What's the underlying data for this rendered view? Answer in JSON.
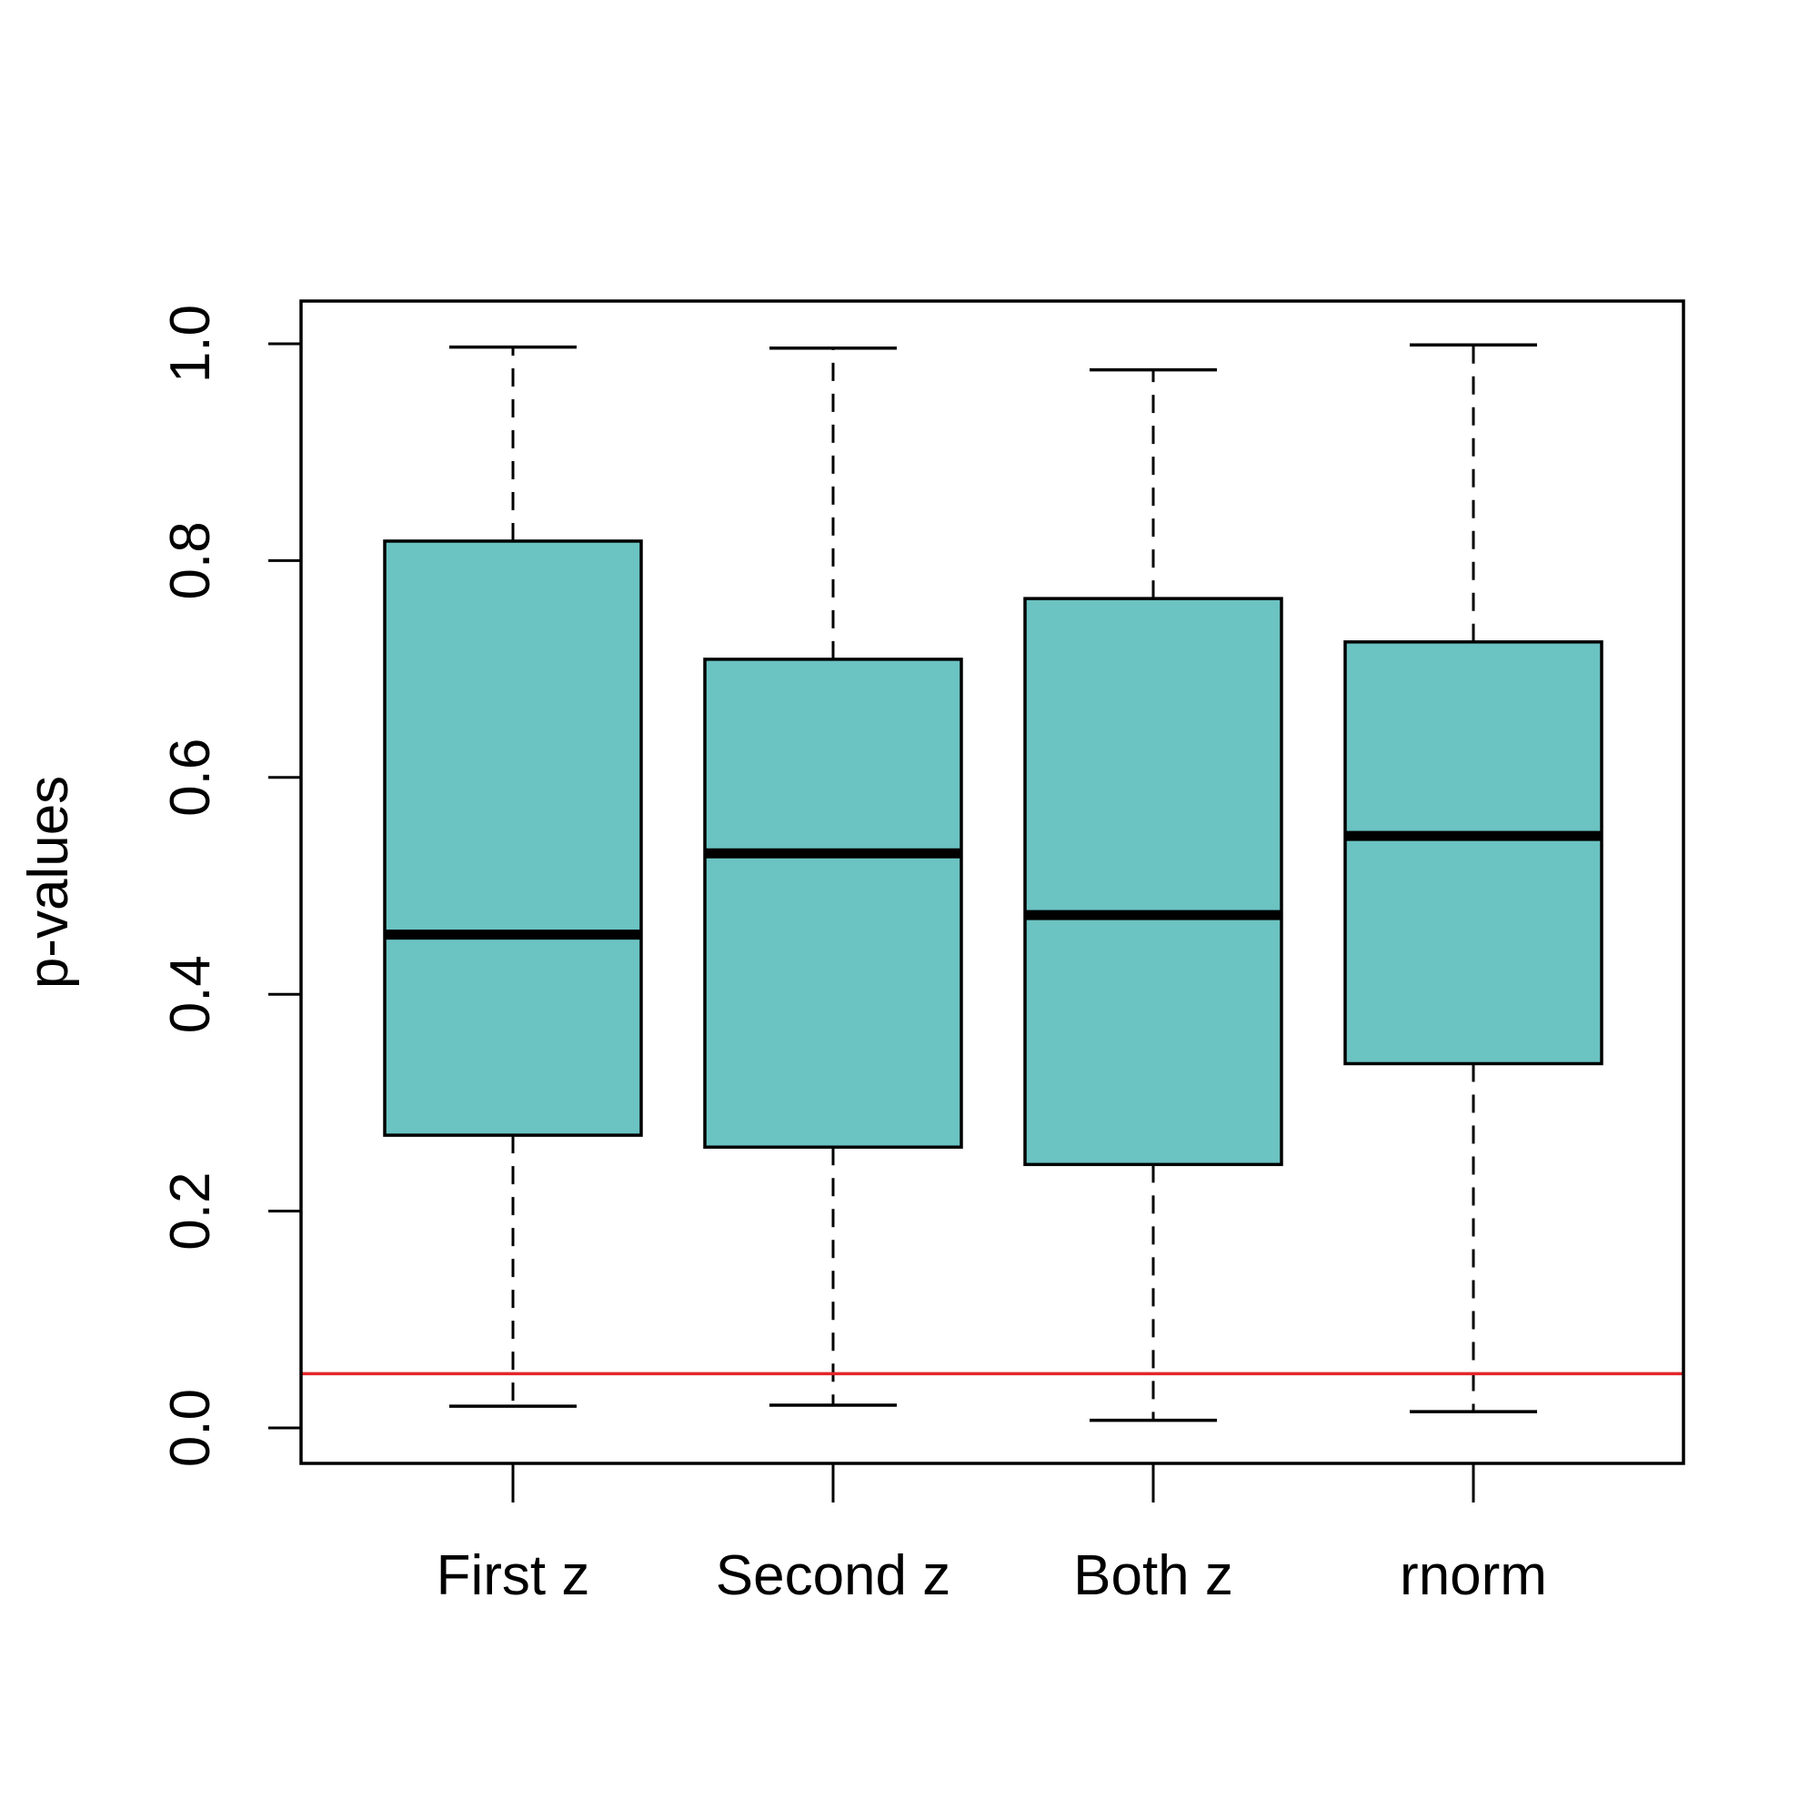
{
  "chart_data": {
    "type": "boxplot",
    "title": "",
    "xlabel": "",
    "ylabel": "p-values",
    "ylim": [
      -0.032,
      1.04
    ],
    "y_ticks": [
      {
        "value": 0.0,
        "label": "0.0"
      },
      {
        "value": 0.2,
        "label": "0.2"
      },
      {
        "value": 0.4,
        "label": "0.4"
      },
      {
        "value": 0.6,
        "label": "0.6"
      },
      {
        "value": 0.8,
        "label": "0.8"
      },
      {
        "value": 1.0,
        "label": "1.0"
      }
    ],
    "categories": [
      "First z",
      "Second z",
      "Both z",
      "rnorm"
    ],
    "boxes": [
      {
        "category": "First z",
        "min": 0.02,
        "q1": 0.27,
        "median": 0.455,
        "q3": 0.818,
        "max": 0.997
      },
      {
        "category": "Second z",
        "min": 0.021,
        "q1": 0.259,
        "median": 0.53,
        "q3": 0.709,
        "max": 0.996
      },
      {
        "category": "Both z",
        "min": 0.007,
        "q1": 0.243,
        "median": 0.473,
        "q3": 0.765,
        "max": 0.976
      },
      {
        "category": "rnorm",
        "min": 0.015,
        "q1": 0.336,
        "median": 0.546,
        "q3": 0.725,
        "max": 0.999
      }
    ],
    "reference_line": {
      "y": 0.05,
      "color": "#e3262b",
      "orientation": "horizontal"
    },
    "box_fill": "#6bc3c2",
    "box_stroke": "#000000",
    "grid": false,
    "legend": "none"
  }
}
